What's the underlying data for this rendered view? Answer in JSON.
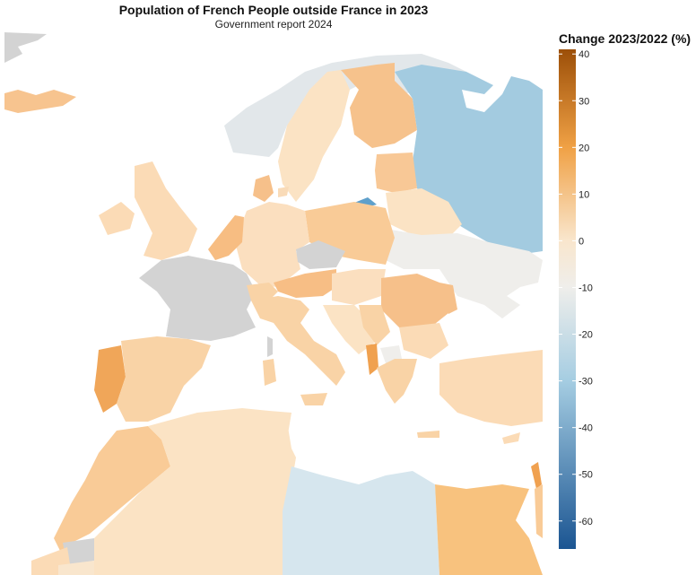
{
  "title": "Population of French People outside France in 2023",
  "subtitle": "Government report 2024",
  "legend": {
    "title": "Change 2023/2022 (%)",
    "min": -66,
    "max": 41,
    "ticks": [
      40,
      30,
      20,
      10,
      0,
      -10,
      -20,
      -30,
      -40,
      -50,
      -60
    ],
    "gradient_stops": [
      {
        "value": 41,
        "color": "#9c4f08"
      },
      {
        "value": 20,
        "color": "#f0a145"
      },
      {
        "value": 0,
        "color": "#f9e6cd"
      },
      {
        "value": -10,
        "color": "#efeeeb"
      },
      {
        "value": -30,
        "color": "#a5cde2"
      },
      {
        "value": -66,
        "color": "#1b5592"
      }
    ]
  },
  "colors": {
    "no_data": "#d3d3d3",
    "sea": "#ffffff"
  }
}
